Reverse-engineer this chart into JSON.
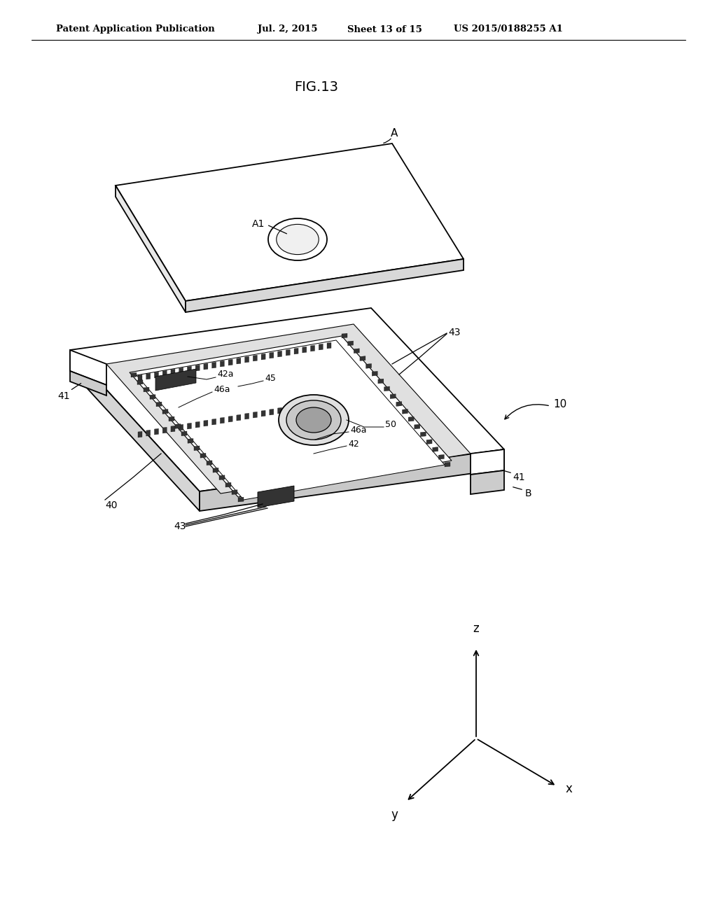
{
  "background_color": "#ffffff",
  "header_text": "Patent Application Publication",
  "header_date": "Jul. 2, 2015",
  "header_sheet": "Sheet 13 of 15",
  "header_patent": "US 2015/0188255 A1",
  "fig_label": "FIG.13",
  "line_color": "#000000",
  "fill_color": "#ffffff",
  "lw_main": 1.3,
  "lw_thin": 0.8
}
